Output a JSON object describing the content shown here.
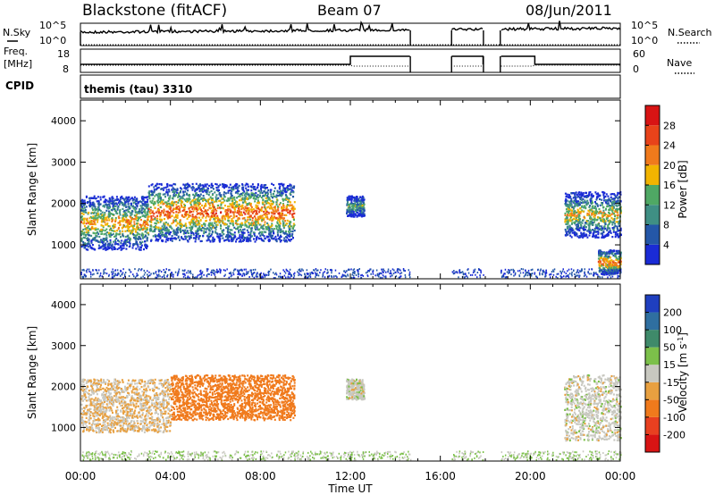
{
  "header": {
    "station": "Blackstone (fitACF)",
    "beam": "Beam 07",
    "date": "08/Jun/2011"
  },
  "strips": {
    "nsky_label": "N.Sky",
    "nsearch_label": "N.Search",
    "freq_label": "Freq.",
    "freq_unit": "[MHz]",
    "nave_label": "Nave",
    "cpid_label": "CPID",
    "cpid_value": "themis (tau) 3310",
    "noise_ticks": [
      "10^5",
      "10^0"
    ],
    "freq_ticks": [
      "18",
      "8"
    ],
    "nave_ticks": [
      "60",
      "0"
    ]
  },
  "chart_data": [
    {
      "type": "heatmap",
      "title": "",
      "parameter": "Power",
      "xlabel": "Time UT",
      "ylabel": "Slant Range [km]",
      "xlim": [
        "00:00",
        "24:00"
      ],
      "ylim": [
        180,
        4500
      ],
      "x_ticks": [
        "00:00",
        "04:00",
        "08:00",
        "12:00",
        "16:00",
        "20:00",
        "00:00"
      ],
      "y_ticks": [
        1000,
        2000,
        3000,
        4000
      ],
      "colorbar": {
        "label": "Power [dB]",
        "ticks": [
          4,
          8,
          12,
          16,
          20,
          24,
          28
        ],
        "colors": [
          "#1a2bd6",
          "#2457a8",
          "#3f8f84",
          "#4fa864",
          "#f2b400",
          "#f07a1c",
          "#e8431a",
          "#d81414"
        ]
      },
      "echo_regions": [
        {
          "t_start": 0.0,
          "t_end": 3.0,
          "range_start_km": 900,
          "range_end_km": 2200,
          "peak_power_db": 26
        },
        {
          "t_start": 3.0,
          "t_end": 9.5,
          "range_start_km": 1100,
          "range_end_km": 2500,
          "peak_power_db": 30
        },
        {
          "t_start": 11.8,
          "t_end": 12.6,
          "range_start_km": 1700,
          "range_end_km": 2200,
          "peak_power_db": 18
        },
        {
          "t_start": 21.5,
          "t_end": 24.0,
          "range_start_km": 1200,
          "range_end_km": 2300,
          "peak_power_db": 24
        },
        {
          "t_start": 23.0,
          "t_end": 24.0,
          "range_start_km": 300,
          "range_end_km": 900,
          "peak_power_db": 30
        }
      ]
    },
    {
      "type": "heatmap",
      "title": "",
      "parameter": "Velocity",
      "xlabel": "Time UT",
      "ylabel": "Slant Range [km]",
      "xlim": [
        "00:00",
        "24:00"
      ],
      "ylim": [
        180,
        4500
      ],
      "x_ticks": [
        "00:00",
        "04:00",
        "08:00",
        "12:00",
        "16:00",
        "20:00",
        "00:00"
      ],
      "y_ticks": [
        1000,
        2000,
        3000,
        4000
      ],
      "colorbar": {
        "label": "Velocity [m s^-1]",
        "ticks": [
          200,
          100,
          50,
          15,
          -15,
          -50,
          -100,
          -200
        ],
        "colors": [
          "#1f3fbf",
          "#2f6fa0",
          "#3f8a6a",
          "#7cc04a",
          "#c8c8c0",
          "#e8a040",
          "#f07a1c",
          "#e84020",
          "#d81414"
        ]
      },
      "echo_regions": [
        {
          "t_start": 0.0,
          "t_end": 4.0,
          "range_start_km": 900,
          "range_end_km": 2200,
          "typical_velocity": -15
        },
        {
          "t_start": 4.0,
          "t_end": 9.5,
          "range_start_km": 1200,
          "range_end_km": 2300,
          "typical_velocity": -80
        },
        {
          "t_start": 11.8,
          "t_end": 12.6,
          "range_start_km": 1700,
          "range_end_km": 2200,
          "typical_velocity": 0
        },
        {
          "t_start": 21.5,
          "t_end": 24.0,
          "range_start_km": 700,
          "range_end_km": 2300,
          "typical_velocity": 0
        }
      ]
    }
  ],
  "data_gaps_ut": [
    [
      "14:40",
      "16:30"
    ],
    [
      "17:55",
      "18:40"
    ]
  ]
}
